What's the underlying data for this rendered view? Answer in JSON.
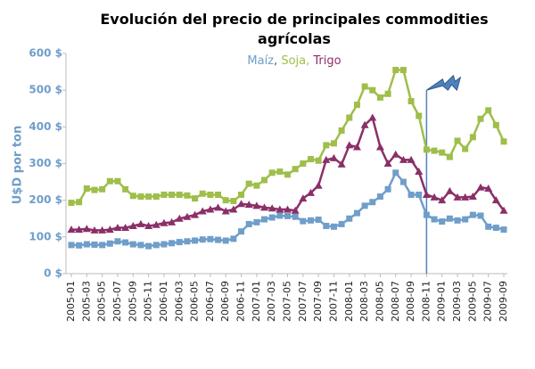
{
  "chart_data": {
    "type": "line",
    "title": "Evolución del precio de principales commodities agrícolas",
    "y_label": "U$D por ton",
    "categories": [
      "2005-01",
      null,
      "2005-03",
      null,
      "2005-05",
      null,
      "2005-07",
      null,
      "2005-09",
      null,
      "2005-11",
      null,
      "2006-01",
      null,
      "2006-03",
      null,
      "2006-05",
      null,
      "2006-07",
      null,
      "2006-09",
      null,
      "2006-11",
      null,
      "2007-01",
      null,
      "2007-03",
      null,
      "2007-05",
      null,
      "2007-07",
      null,
      "2007-09",
      null,
      "2007-11",
      null,
      "2008-01",
      null,
      "2008-03",
      null,
      "2008-05",
      null,
      "2008-07",
      null,
      "2008-09",
      null,
      "2008-11",
      null,
      "2009-01",
      null,
      "2009-03",
      null,
      "2009-05",
      null,
      "2009-07",
      null,
      "2009-09"
    ],
    "series": [
      {
        "name": "Maíz",
        "color": "#6f9ec9",
        "marker": "square",
        "values": [
          78,
          77,
          80,
          79,
          78,
          82,
          88,
          85,
          80,
          78,
          75,
          78,
          80,
          83,
          86,
          88,
          90,
          93,
          94,
          92,
          90,
          95,
          115,
          135,
          140,
          148,
          153,
          158,
          157,
          155,
          143,
          145,
          147,
          130,
          128,
          135,
          150,
          165,
          185,
          195,
          210,
          230,
          275,
          250,
          215,
          215,
          160,
          148,
          142,
          150,
          145,
          148,
          160,
          158,
          128,
          125,
          120
        ]
      },
      {
        "name": "Soja",
        "color": "#9fbe4a",
        "marker": "square",
        "values": [
          193,
          195,
          232,
          228,
          230,
          252,
          252,
          230,
          212,
          210,
          210,
          210,
          215,
          215,
          215,
          213,
          205,
          218,
          215,
          215,
          200,
          198,
          215,
          245,
          240,
          255,
          275,
          278,
          270,
          285,
          300,
          312,
          308,
          350,
          355,
          390,
          425,
          460,
          510,
          500,
          480,
          490,
          555,
          555,
          470,
          430,
          338,
          335,
          330,
          318,
          362,
          340,
          372,
          422,
          445,
          405,
          360
        ]
      },
      {
        "name": "Trigo",
        "color": "#8b2f68",
        "marker": "triangle",
        "values": [
          120,
          120,
          122,
          118,
          118,
          120,
          125,
          125,
          130,
          135,
          130,
          133,
          138,
          140,
          150,
          155,
          160,
          170,
          175,
          180,
          170,
          175,
          190,
          188,
          185,
          180,
          178,
          175,
          175,
          172,
          205,
          220,
          240,
          310,
          315,
          298,
          350,
          345,
          405,
          425,
          345,
          300,
          325,
          310,
          310,
          278,
          215,
          208,
          200,
          225,
          208,
          208,
          210,
          235,
          232,
          200,
          172
        ]
      }
    ],
    "ylim": [
      0,
      600
    ],
    "yticks": [
      {
        "value": 0,
        "label": "0 $"
      },
      {
        "value": 100,
        "label": "100 $"
      },
      {
        "value": 200,
        "label": "200 $"
      },
      {
        "value": 300,
        "label": "300 $"
      },
      {
        "value": 400,
        "label": "400 $"
      },
      {
        "value": 500,
        "label": "500 $"
      },
      {
        "value": 600,
        "label": "600 $"
      }
    ],
    "grid": false
  }
}
